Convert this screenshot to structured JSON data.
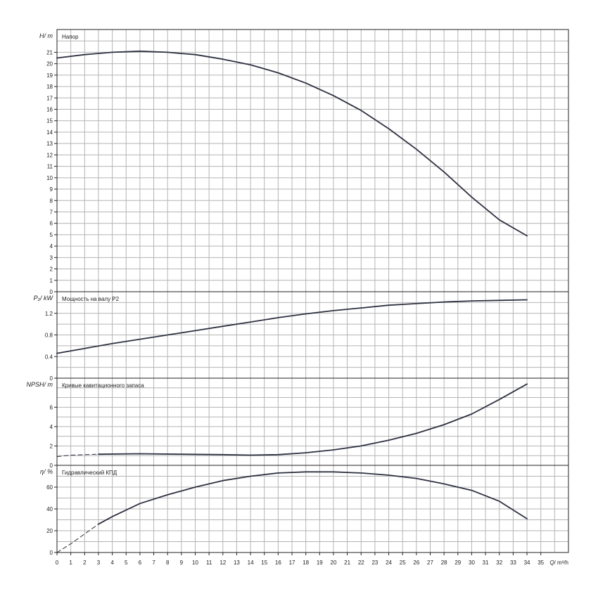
{
  "chart_data": {
    "type": "line",
    "x_axis": {
      "label": "Q",
      "unit": "m³/h",
      "range": [
        0,
        37
      ],
      "ticks": [
        "0",
        "1",
        "2",
        "3",
        "4",
        "5",
        "6",
        "7",
        "8",
        "9",
        "10",
        "11",
        "12",
        "13",
        "14",
        "15",
        "16",
        "17",
        "18",
        "19",
        "20",
        "21",
        "22",
        "23",
        "24",
        "25",
        "26",
        "27",
        "28",
        "29",
        "30",
        "31",
        "32",
        "33",
        "34",
        "35"
      ]
    },
    "panels": [
      {
        "id": "head",
        "title": "Напор",
        "y_label": "H",
        "y_unit": "m",
        "y_range": [
          0,
          23
        ],
        "y_grid_step": 1,
        "y_ticks": [
          "0",
          "1",
          "2",
          "3",
          "4",
          "5",
          "6",
          "7",
          "8",
          "9",
          "10",
          "11",
          "12",
          "13",
          "14",
          "15",
          "16",
          "17",
          "18",
          "19",
          "20",
          "21"
        ],
        "series": [
          {
            "style": "solid",
            "points": [
              [
                0,
                20.5
              ],
              [
                2,
                20.8
              ],
              [
                4,
                21.0
              ],
              [
                6,
                21.1
              ],
              [
                8,
                21.0
              ],
              [
                10,
                20.8
              ],
              [
                12,
                20.4
              ],
              [
                14,
                19.9
              ],
              [
                16,
                19.2
              ],
              [
                18,
                18.3
              ],
              [
                20,
                17.2
              ],
              [
                22,
                15.9
              ],
              [
                24,
                14.3
              ],
              [
                26,
                12.5
              ],
              [
                28,
                10.5
              ],
              [
                30,
                8.3
              ],
              [
                32,
                6.3
              ],
              [
                34,
                4.9
              ]
            ]
          }
        ]
      },
      {
        "id": "power",
        "title": "Мощность на валу P2",
        "y_label": "P₂",
        "y_unit": "kW",
        "y_range": [
          0,
          1.6
        ],
        "y_grid_step": 0.2,
        "y_ticks": [
          "0",
          "0.4",
          "0.8",
          "1.2"
        ],
        "series": [
          {
            "style": "solid",
            "points": [
              [
                0,
                0.46
              ],
              [
                2,
                0.55
              ],
              [
                4,
                0.64
              ],
              [
                6,
                0.72
              ],
              [
                8,
                0.8
              ],
              [
                10,
                0.88
              ],
              [
                12,
                0.96
              ],
              [
                14,
                1.04
              ],
              [
                16,
                1.12
              ],
              [
                18,
                1.19
              ],
              [
                20,
                1.25
              ],
              [
                22,
                1.3
              ],
              [
                24,
                1.35
              ],
              [
                26,
                1.38
              ],
              [
                28,
                1.41
              ],
              [
                30,
                1.43
              ],
              [
                32,
                1.44
              ],
              [
                34,
                1.45
              ]
            ]
          }
        ]
      },
      {
        "id": "npsh",
        "title": "Кривые кавитационного запаса",
        "y_label": "NPSH",
        "y_unit": "m",
        "y_range": [
          0,
          9
        ],
        "y_grid_step": 1,
        "y_ticks": [
          "0",
          "2",
          "4",
          "6"
        ],
        "series": [
          {
            "style": "dashed",
            "points": [
              [
                0,
                0.9
              ],
              [
                1,
                1.05
              ],
              [
                2,
                1.1
              ],
              [
                3,
                1.15
              ]
            ]
          },
          {
            "style": "solid",
            "points": [
              [
                3,
                1.15
              ],
              [
                6,
                1.2
              ],
              [
                9,
                1.15
              ],
              [
                12,
                1.1
              ],
              [
                14,
                1.05
              ],
              [
                16,
                1.1
              ],
              [
                18,
                1.3
              ],
              [
                20,
                1.6
              ],
              [
                22,
                2.0
              ],
              [
                24,
                2.6
              ],
              [
                26,
                3.3
              ],
              [
                28,
                4.2
              ],
              [
                30,
                5.3
              ],
              [
                32,
                6.8
              ],
              [
                34,
                8.4
              ]
            ]
          }
        ]
      },
      {
        "id": "efficiency",
        "title": "Гидравлический КПД",
        "y_label": "η",
        "y_unit": "%",
        "y_range": [
          0,
          80
        ],
        "y_grid_step": 10,
        "y_ticks": [
          "0",
          "20",
          "40",
          "60"
        ],
        "series": [
          {
            "style": "dashed",
            "points": [
              [
                0,
                0
              ],
              [
                1,
                8
              ],
              [
                2,
                17
              ],
              [
                3,
                26
              ]
            ]
          },
          {
            "style": "solid",
            "points": [
              [
                3,
                26
              ],
              [
                4,
                33
              ],
              [
                6,
                45
              ],
              [
                8,
                53
              ],
              [
                10,
                60
              ],
              [
                12,
                66
              ],
              [
                14,
                70
              ],
              [
                16,
                73
              ],
              [
                18,
                74
              ],
              [
                20,
                74
              ],
              [
                22,
                73
              ],
              [
                24,
                71
              ],
              [
                26,
                68
              ],
              [
                28,
                63
              ],
              [
                30,
                57
              ],
              [
                32,
                47
              ],
              [
                34,
                31
              ]
            ]
          }
        ]
      }
    ]
  }
}
